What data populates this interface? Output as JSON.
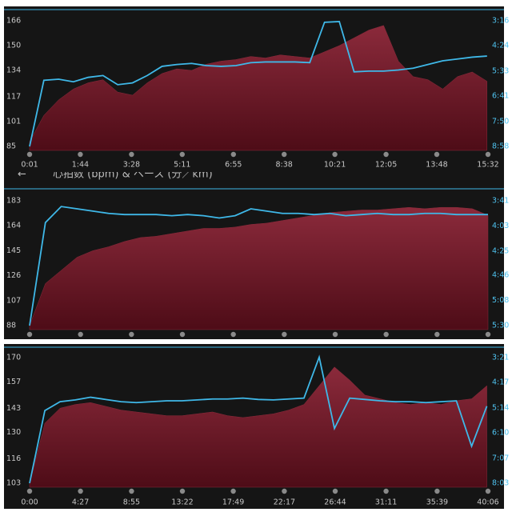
{
  "chart_data": [
    {
      "type": "combo",
      "x": [
        1,
        30,
        60,
        90,
        120,
        150,
        180,
        210,
        240,
        270,
        300,
        330,
        360,
        390,
        420,
        450,
        480,
        510,
        540,
        570,
        600,
        630,
        660,
        690,
        720,
        750,
        780,
        810,
        840,
        870,
        900,
        930
      ],
      "xlim": [
        1,
        932
      ],
      "xticks": [
        {
          "value": 1,
          "label": "0:01"
        },
        {
          "value": 104,
          "label": "1:44"
        },
        {
          "value": 208,
          "label": "3:28"
        },
        {
          "value": 311,
          "label": "5:11"
        },
        {
          "value": 415,
          "label": "6:55"
        },
        {
          "value": 518,
          "label": "8:38"
        },
        {
          "value": 621,
          "label": "10:21"
        },
        {
          "value": 725,
          "label": "12:05"
        },
        {
          "value": 828,
          "label": "13:48"
        },
        {
          "value": 932,
          "label": "15:32"
        }
      ],
      "ylim": [
        85,
        166
      ],
      "yticks": [
        85,
        101,
        117,
        134,
        150,
        166
      ],
      "y2lim": [
        538,
        196
      ],
      "y2ticks": [
        {
          "value": 538,
          "label": "8:58"
        },
        {
          "value": 470,
          "label": "7:50"
        },
        {
          "value": 401,
          "label": "6:41"
        },
        {
          "value": 333,
          "label": "5:33"
        },
        {
          "value": 264,
          "label": "4:24"
        },
        {
          "value": 196,
          "label": "3:16"
        }
      ],
      "series": [
        {
          "type": "area",
          "color": "#8b2a3b",
          "values": [
            88,
            105,
            115,
            122,
            126,
            128,
            120,
            118,
            126,
            132,
            135,
            134,
            138,
            140,
            141,
            143,
            142,
            144,
            143,
            142,
            146,
            150,
            155,
            160,
            163,
            140,
            130,
            128,
            122,
            130,
            133,
            127
          ]
        },
        {
          "type": "line",
          "axis": "y2",
          "color": "#3fb8e8",
          "values": [
            538,
            358,
            355,
            362,
            350,
            345,
            370,
            365,
            345,
            320,
            315,
            312,
            318,
            320,
            318,
            310,
            308,
            308,
            308,
            310,
            200,
            198,
            335,
            333,
            333,
            330,
            325,
            315,
            305,
            300,
            295,
            292
          ]
        }
      ]
    },
    {
      "type": "combo",
      "title": "心拍数 (bpm) & ペース (分／km)",
      "ylim": [
        88,
        183
      ],
      "yticks": [
        88,
        107,
        126,
        145,
        164,
        183
      ],
      "y2lim": [
        330,
        221
      ],
      "y2ticks": [
        {
          "value": 330,
          "label": "5:30"
        },
        {
          "value": 308,
          "label": "5:08"
        },
        {
          "value": 286,
          "label": "4:46"
        },
        {
          "value": 265,
          "label": "4:25"
        },
        {
          "value": 243,
          "label": "4:03"
        },
        {
          "value": 221,
          "label": "3:41"
        }
      ],
      "series": [
        {
          "type": "area",
          "color": "#8b2a3b",
          "values": [
            88,
            120,
            130,
            140,
            145,
            148,
            152,
            155,
            156,
            158,
            160,
            162,
            162,
            163,
            165,
            166,
            168,
            170,
            172,
            174,
            175,
            176,
            176,
            177,
            178,
            177,
            178,
            178,
            177,
            172
          ]
        },
        {
          "type": "line",
          "axis": "y2",
          "color": "#3fb8e8",
          "values": [
            330,
            240,
            226,
            228,
            230,
            232,
            233,
            233,
            233,
            234,
            233,
            234,
            236,
            234,
            228,
            230,
            232,
            232,
            233,
            232,
            234,
            233,
            232,
            233,
            233,
            232,
            232,
            233,
            233,
            233
          ]
        }
      ]
    },
    {
      "type": "combo",
      "x": [
        0,
        80,
        160,
        240,
        320,
        400,
        480,
        560,
        640,
        720,
        800,
        880,
        960,
        1040,
        1120,
        1200,
        1280,
        1360,
        1440,
        1520,
        1600,
        1680,
        1760,
        1840,
        1920,
        2000,
        2080,
        2160,
        2240,
        2320,
        2400
      ],
      "xlim": [
        0,
        2406
      ],
      "xticks": [
        {
          "value": 0,
          "label": "0:00"
        },
        {
          "value": 267,
          "label": "4:27"
        },
        {
          "value": 535,
          "label": "8:55"
        },
        {
          "value": 802,
          "label": "13:22"
        },
        {
          "value": 1069,
          "label": "17:49"
        },
        {
          "value": 1337,
          "label": "22:17"
        },
        {
          "value": 1604,
          "label": "26:44"
        },
        {
          "value": 1871,
          "label": "31:11"
        },
        {
          "value": 2139,
          "label": "35:39"
        },
        {
          "value": 2406,
          "label": "40:06"
        }
      ],
      "ylim": [
        103,
        170
      ],
      "yticks": [
        103,
        116,
        130,
        143,
        157,
        170
      ],
      "y2lim": [
        483,
        201
      ],
      "y2ticks": [
        {
          "value": 483,
          "label": "8:03"
        },
        {
          "value": 427,
          "label": "7:07"
        },
        {
          "value": 370,
          "label": "6:10"
        },
        {
          "value": 314,
          "label": "5:14"
        },
        {
          "value": 257,
          "label": "4:17"
        },
        {
          "value": 201,
          "label": "3:21"
        }
      ],
      "series": [
        {
          "type": "area",
          "color": "#8b2a3b",
          "values": [
            103,
            135,
            143,
            145,
            146,
            144,
            142,
            141,
            140,
            139,
            139,
            140,
            141,
            139,
            138,
            139,
            140,
            142,
            145,
            155,
            165,
            158,
            150,
            148,
            146,
            145,
            146,
            145,
            147,
            148,
            155
          ]
        },
        {
          "type": "line",
          "axis": "y2",
          "color": "#3fb8e8",
          "values": [
            483,
            320,
            300,
            296,
            290,
            295,
            300,
            302,
            300,
            298,
            298,
            296,
            294,
            294,
            292,
            295,
            296,
            294,
            292,
            200,
            360,
            292,
            295,
            298,
            300,
            300,
            302,
            300,
            298,
            400,
            310
          ]
        }
      ]
    }
  ]
}
